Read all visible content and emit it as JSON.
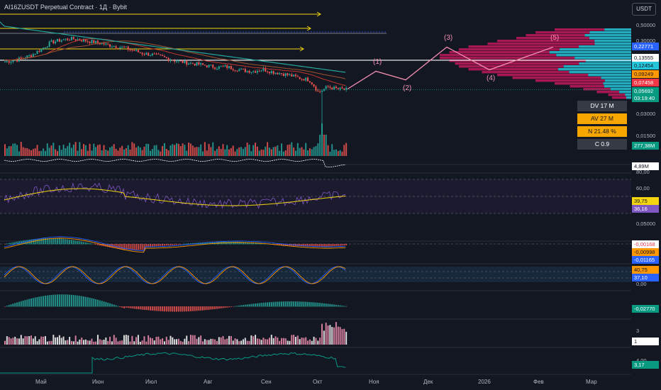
{
  "header": {
    "title": "AI16ZUSDT Perpetual Contract · 1Д · Bybit",
    "currency": "USDT"
  },
  "colors": {
    "bg": "#131722",
    "up": "#26a69a",
    "down": "#ef5350",
    "wave": "#f48fb1",
    "yellow": "#f2d40f",
    "teal": "#26c6da"
  },
  "price_axis": [
    "0,50000",
    "0,30000",
    "0,03000",
    "0,01500"
  ],
  "price_tags": [
    {
      "text": "0,22771",
      "bg": "#2962ff",
      "fg": "#ffffff"
    },
    {
      "text": "0,13555",
      "bg": "#ffffff",
      "fg": "#131722"
    },
    {
      "text": "0,12454",
      "bg": "#26c6da",
      "fg": "#131722"
    },
    {
      "text": "0,09249",
      "bg": "#ff9800",
      "fg": "#131722"
    },
    {
      "text": "0,07458",
      "bg": "#f23645",
      "fg": "#ffffff"
    },
    {
      "text": "0,05692",
      "bg": "#089981",
      "fg": "#ffffff"
    },
    {
      "text": "03:19:40",
      "bg": "#089981",
      "fg": "#ffffff"
    }
  ],
  "stats": [
    {
      "text": "DV 17 M",
      "bg": "#363a45",
      "fg": "#ffffff"
    },
    {
      "text": "AV 27 M",
      "bg": "#f7a600",
      "fg": "#131722"
    },
    {
      "text": "N 21.48 %",
      "bg": "#f7a600",
      "fg": "#131722"
    },
    {
      "text": "C  0.9",
      "bg": "#363a45",
      "fg": "#ffffff"
    }
  ],
  "volume_tag": "277,38M",
  "pane_axis": [
    "80,00",
    "60,00",
    "0,05000",
    "0,00",
    "4,00",
    "3"
  ],
  "pane_tags": [
    {
      "text": "4,89M",
      "bg": "#ffffff",
      "fg": "#131722"
    },
    {
      "text": "39,75",
      "bg": "#f2d40f",
      "fg": "#131722"
    },
    {
      "text": "36,16",
      "bg": "#7e57c2",
      "fg": "#ffffff"
    },
    {
      "text": "-0,00168",
      "bg": "#ffffff",
      "fg": "#f23645"
    },
    {
      "text": "-0,00998",
      "bg": "#ff9800",
      "fg": "#131722"
    },
    {
      "text": "-0,01165",
      "bg": "#2962ff",
      "fg": "#ffffff"
    },
    {
      "text": "40,75",
      "bg": "#ff9800",
      "fg": "#131722"
    },
    {
      "text": "37,10",
      "bg": "#2962ff",
      "fg": "#ffffff"
    },
    {
      "text": "-0,02770",
      "bg": "#089981",
      "fg": "#ffffff"
    },
    {
      "text": "1",
      "bg": "#ffffff",
      "fg": "#131722"
    },
    {
      "text": "3,17",
      "bg": "#089981",
      "fg": "#ffffff"
    }
  ],
  "months": [
    "Май",
    "Июн",
    "Июл",
    "Авг",
    "Сен",
    "Окт",
    "Ноя",
    "Дек",
    "2026",
    "Фев",
    "Мар"
  ],
  "chart_data": {
    "type": "candlestick",
    "symbol": "AI16ZUSDT",
    "timeframe": "1Д",
    "y_scale": "log",
    "y_ticks": [
      0.5,
      0.3,
      0.03,
      0.015
    ],
    "marked_prices": [
      0.22771,
      0.13555,
      0.12454,
      0.09249,
      0.07458,
      0.05692
    ],
    "current_price": 0.05692,
    "close_approx": [
      0.13,
      0.135,
      0.145,
      0.16,
      0.19,
      0.23,
      0.245,
      0.255,
      0.25,
      0.238,
      0.228,
      0.215,
      0.205,
      0.195,
      0.18,
      0.165,
      0.16,
      0.15,
      0.138,
      0.13,
      0.125,
      0.12,
      0.115,
      0.11,
      0.112,
      0.105,
      0.1,
      0.098,
      0.104,
      0.096,
      0.092,
      0.086,
      0.08,
      0.076,
      0.052,
      0.062,
      0.058,
      0.05692
    ],
    "elliott_wave": {
      "labels": [
        "(1)",
        "(2)",
        "(3)",
        "(4)",
        "(5)"
      ],
      "prices": [
        0.098,
        0.076,
        0.2,
        0.102,
        0.2
      ]
    },
    "indicator_values": {
      "volume": "277,38M",
      "pane1": "4,89M",
      "rsi": [
        39.75,
        36.16
      ],
      "macd": [
        -0.00168,
        -0.00998,
        -0.01165
      ],
      "stoch": [
        40.75,
        37.1
      ],
      "histogram": -0.0277,
      "pane5": 1,
      "pane6": 3.17
    },
    "stats": {
      "DV": "17 M",
      "AV": "27 M",
      "N": "21.48 %",
      "C": 0.9
    }
  }
}
